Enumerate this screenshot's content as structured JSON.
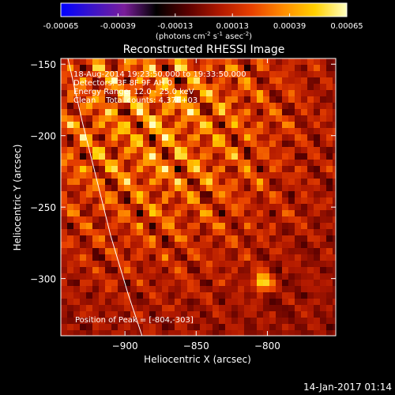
{
  "chart_data": {
    "type": "heatmap",
    "title": "Reconstructed RHESSI Image",
    "xlabel": "Heliocentric X (arcsec)",
    "ylabel": "Heliocentric Y (arcsec)",
    "xlim": [
      -945,
      -752
    ],
    "ylim": [
      -340,
      -146
    ],
    "xticks": [
      -900,
      -850,
      -800
    ],
    "yticks": [
      -150,
      -200,
      -250,
      -300
    ],
    "colorbar": {
      "min": -0.00065,
      "max": 0.00065,
      "ticks": [
        "-0.00065",
        "-0.00039",
        "-0.00013",
        "0.00013",
        "0.00039",
        "0.00065"
      ],
      "label_main": "(photons cm",
      "label_sup1": "-2",
      "label_mid": " s",
      "label_sup2": "-1",
      "label_end": " asec",
      "label_sup3": "-2",
      "label_close": ")",
      "colors": [
        "#0000ff",
        "#3c14c8",
        "#7a1d9a",
        "#000000",
        "#5a0000",
        "#b01800",
        "#e84000",
        "#ff8c00",
        "#ffd000",
        "#ffffc0"
      ]
    },
    "info_lines": [
      "18-Aug-2014 19:23:50.000 to 19:33:50.000",
      "Detectors: 3F 8F 9F AH 0",
      "Energy Range: 12.0 - 25.0 keV",
      "Clean    Total counts: 4.37E+03"
    ],
    "peak_label": "Position of Peak = [-804,-303]",
    "peak_position": [
      -804,
      -303
    ],
    "limb_curve": [
      [
        -940,
        -146
      ],
      [
        -930,
        -190
      ],
      [
        -920,
        -230
      ],
      [
        -910,
        -270
      ],
      [
        -898,
        -310
      ],
      [
        -888,
        -340
      ]
    ],
    "bright_region_center": [
      -880,
      -190
    ]
  },
  "footer": {
    "timestamp": "14-Jan-2017 01:14"
  }
}
